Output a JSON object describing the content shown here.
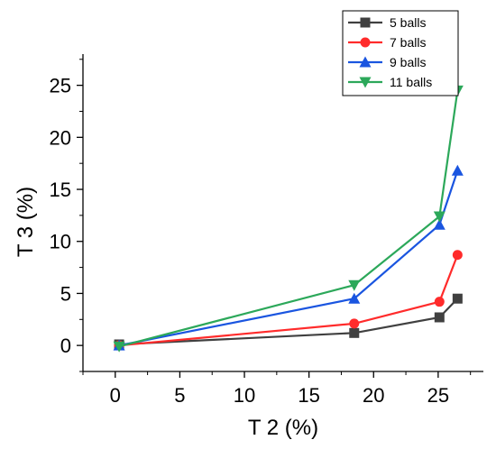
{
  "chart_data": {
    "type": "line",
    "title": "",
    "xlabel": "T 2 (%)",
    "ylabel": "T 3 (%)",
    "xlim": [
      -2.5,
      28.5
    ],
    "ylim": [
      -2.5,
      28
    ],
    "x_ticks": [
      0,
      5,
      10,
      15,
      20,
      25
    ],
    "y_ticks": [
      0,
      5,
      10,
      15,
      20,
      25
    ],
    "grid": false,
    "legend_position": "top-right",
    "series": [
      {
        "name": "5 balls",
        "color": "#404040",
        "marker": "square",
        "x": [
          0.3,
          18.5,
          25.1,
          26.5
        ],
        "y": [
          0.1,
          1.2,
          2.7,
          4.5
        ]
      },
      {
        "name": "7 balls",
        "color": "#ff2b2b",
        "marker": "circle",
        "x": [
          0.3,
          18.5,
          25.1,
          26.5
        ],
        "y": [
          0.0,
          2.1,
          4.2,
          8.7
        ]
      },
      {
        "name": "9 balls",
        "color": "#1a55e0",
        "marker": "triangle-up",
        "x": [
          0.3,
          18.5,
          25.1,
          26.5
        ],
        "y": [
          0.0,
          4.5,
          11.6,
          16.8
        ]
      },
      {
        "name": "11 balls",
        "color": "#2ca85a",
        "marker": "triangle-down",
        "x": [
          0.3,
          18.5,
          25.1,
          26.5
        ],
        "y": [
          -0.1,
          5.8,
          12.4,
          24.5
        ]
      }
    ]
  }
}
